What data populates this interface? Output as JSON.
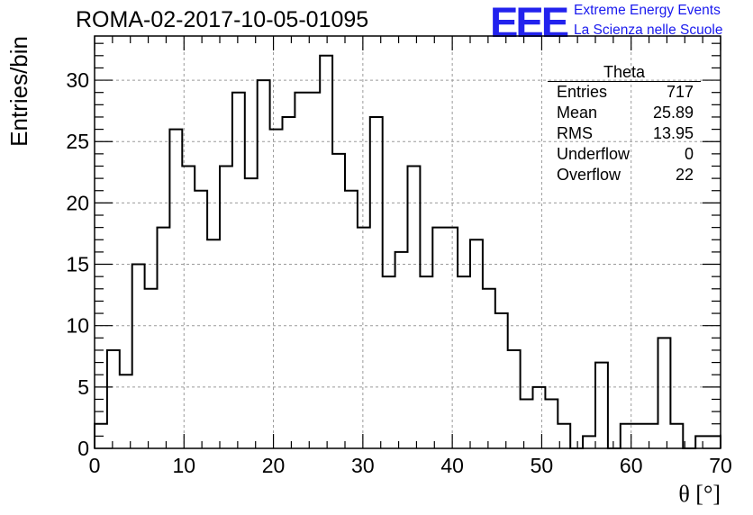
{
  "title": "ROMA-02-2017-10-05-01095",
  "logo": {
    "text": "EEE",
    "line1": "Extreme Energy Events",
    "line2": "La Scienza nelle Scuole",
    "color": "#1a1aee"
  },
  "stats": {
    "name": "Theta",
    "rows": [
      {
        "label": "Entries",
        "value": "717"
      },
      {
        "label": "Mean",
        "value": "25.89"
      },
      {
        "label": "RMS",
        "value": "13.95"
      },
      {
        "label": "Underflow",
        "value": "0"
      },
      {
        "label": "Overflow",
        "value": "22"
      }
    ]
  },
  "chart_data": {
    "type": "histogram",
    "xlabel": "θ [°]",
    "ylabel": "Entries/bin",
    "xlim": [
      0,
      70
    ],
    "ylim": [
      0,
      33.6
    ],
    "xticks": [
      0,
      10,
      20,
      30,
      40,
      50,
      60,
      70
    ],
    "yticks": [
      0,
      5,
      10,
      15,
      20,
      25,
      30
    ],
    "grid": true,
    "bin_edges_start": 0,
    "bin_width": 1.4,
    "values": [
      2,
      8,
      6,
      15,
      13,
      18,
      26,
      23,
      21,
      17,
      23,
      29,
      22,
      30,
      26,
      27,
      29,
      29,
      32,
      24,
      21,
      18,
      27,
      14,
      16,
      23,
      14,
      18,
      18,
      14,
      17,
      13,
      11,
      8,
      4,
      5,
      4,
      2,
      0,
      1,
      7,
      0,
      2,
      2,
      2,
      9,
      2,
      0,
      1,
      1
    ]
  }
}
